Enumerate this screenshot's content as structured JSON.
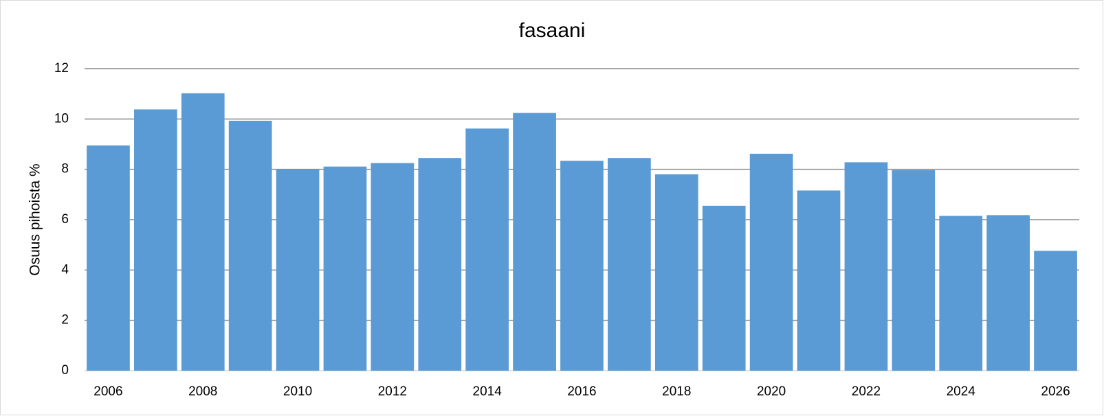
{
  "chart_data": {
    "type": "bar",
    "title": "fasaani",
    "y_label": "Osuus pihoista %",
    "categories": [
      "2006",
      null,
      "2008",
      null,
      "2010",
      null,
      "2012",
      null,
      "2014",
      null,
      "2016",
      null,
      "2018",
      null,
      "2020",
      null,
      "2022",
      null,
      "2024",
      null,
      "2026"
    ],
    "values": [
      8.95,
      10.38,
      11.02,
      9.93,
      8.0,
      8.11,
      8.25,
      8.45,
      9.62,
      10.24,
      8.34,
      8.45,
      7.8,
      6.55,
      8.62,
      7.16,
      8.28,
      7.97,
      6.15,
      6.18,
      4.76
    ],
    "color": "#5b9bd5",
    "ylim": [
      0,
      12
    ],
    "yticks": [
      0,
      2,
      4,
      6,
      8,
      10,
      12
    ],
    "grid": true
  }
}
